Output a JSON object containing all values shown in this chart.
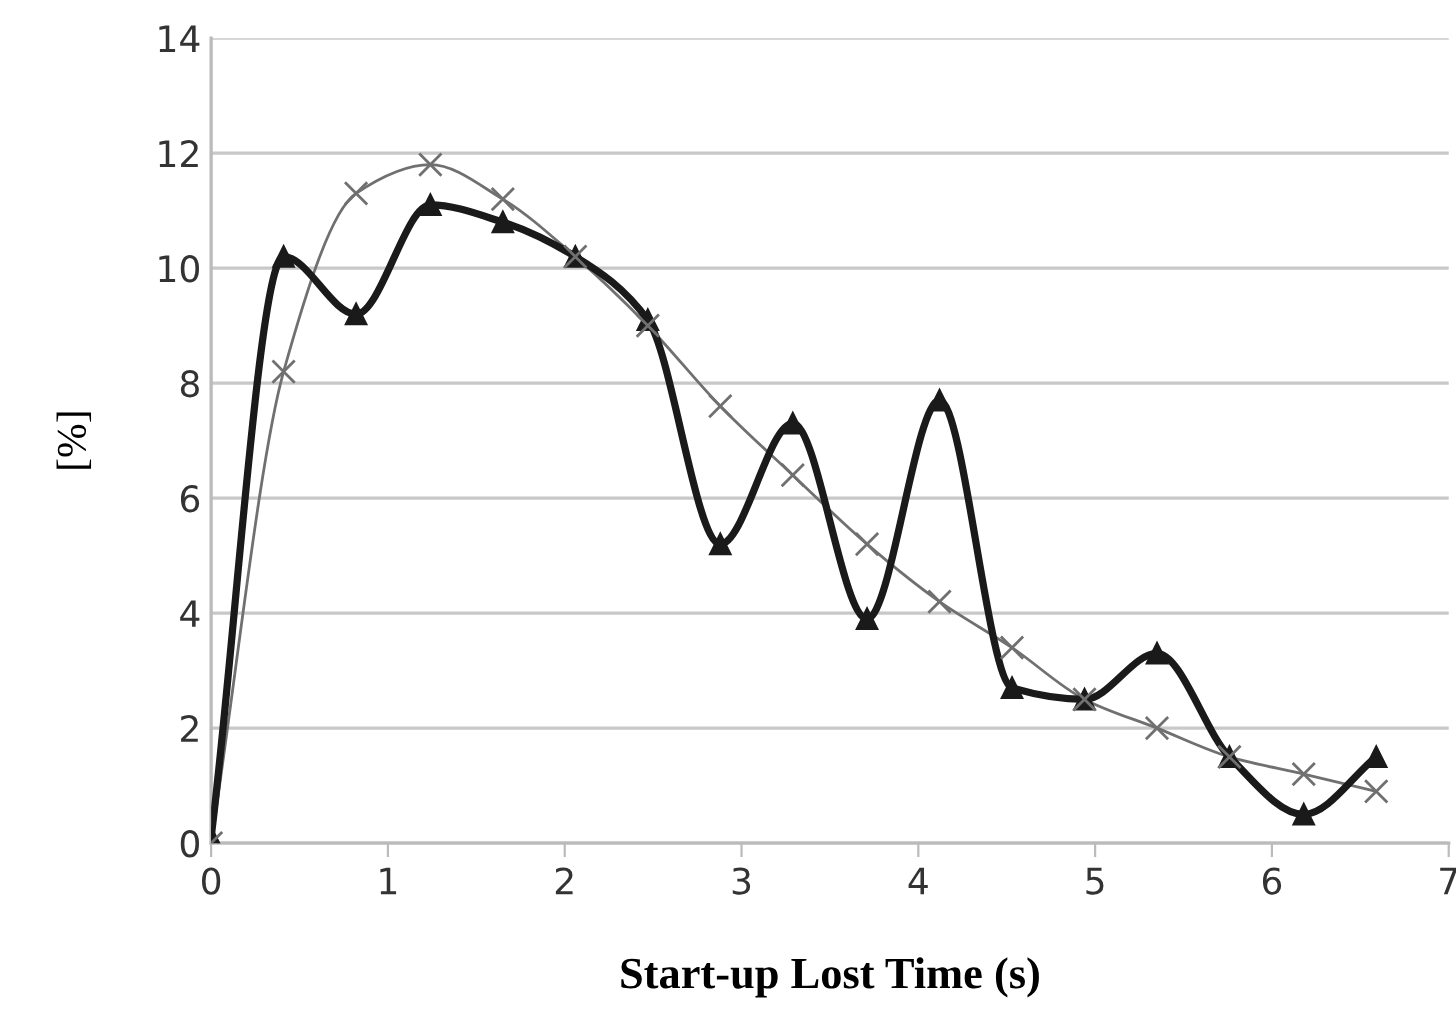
{
  "chart_data": {
    "type": "line",
    "xlabel": "Start-up Lost Time (s)",
    "ylabel": "[%]",
    "x": [
      0,
      0.41,
      0.82,
      1.24,
      1.65,
      2.06,
      2.47,
      2.88,
      3.29,
      3.71,
      4.12,
      4.53,
      4.94,
      5.35,
      5.76,
      6.18,
      6.59
    ],
    "series": [
      {
        "color": "#1a1a1a",
        "marker": "triangle",
        "values": [
          0.1,
          10.2,
          9.2,
          11.1,
          10.8,
          10.2,
          9.1,
          5.2,
          7.3,
          3.9,
          7.7,
          2.7,
          2.5,
          3.3,
          1.5,
          0.5,
          1.5
        ]
      },
      {
        "color": "#707070",
        "marker": "cross",
        "values": [
          0.0,
          8.2,
          11.3,
          11.8,
          11.2,
          10.2,
          9.0,
          7.6,
          6.4,
          5.2,
          4.2,
          3.4,
          2.5,
          2.0,
          1.5,
          1.2,
          0.9
        ]
      }
    ],
    "xlim": [
      0,
      7
    ],
    "xticks": [
      0,
      1,
      2,
      3,
      4,
      5,
      6,
      7
    ],
    "ylim": [
      0,
      14
    ],
    "yticks": [
      0,
      2,
      4,
      6,
      8,
      10,
      12,
      14
    ],
    "grid": "y",
    "legend": false
  }
}
